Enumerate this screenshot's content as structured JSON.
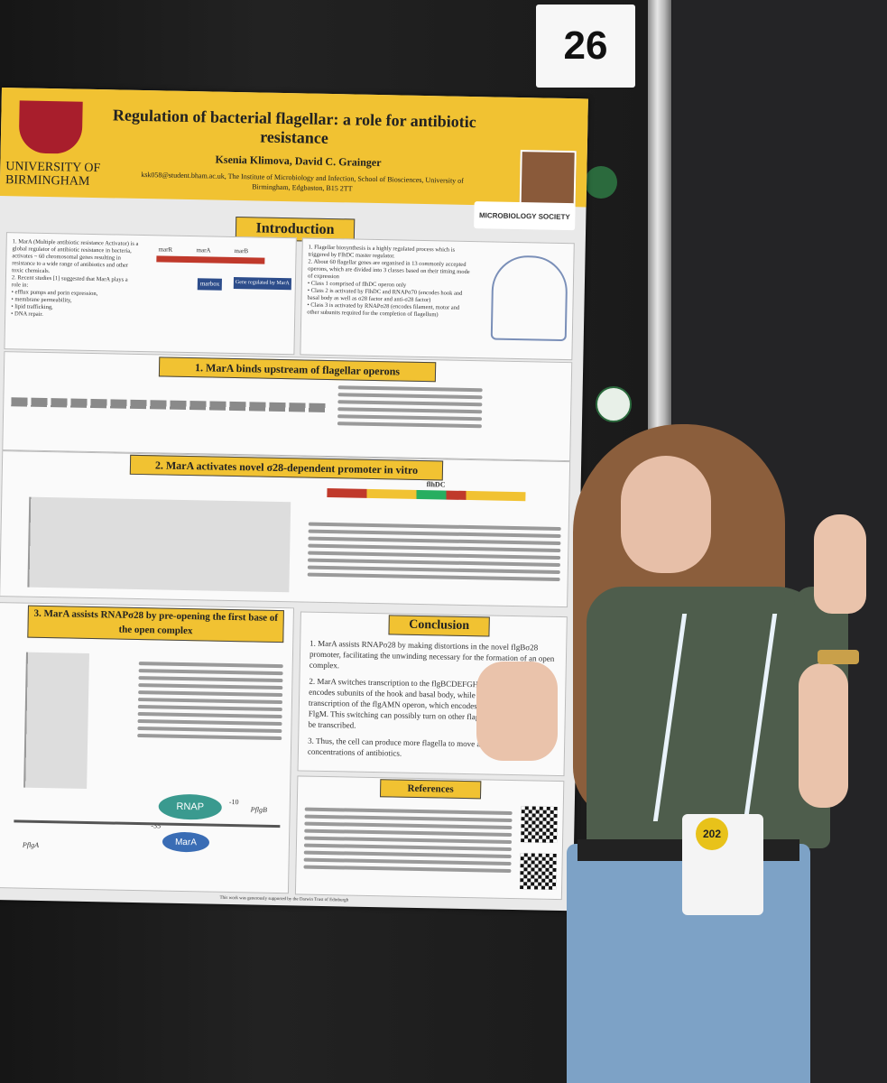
{
  "poster_number": "26",
  "header": {
    "university": "UNIVERSITY OF BIRMINGHAM",
    "title": "Regulation of bacterial flagellar: a role for antibiotic resistance",
    "authors": "Ksenia Klimova, David C. Grainger",
    "affiliation": "ksk058@student.bham.ac.uk, The Institute of Microbiology and Infection, School of Biosciences, University of Birmingham, Edgbaston, B15 2TT",
    "society": "MICROBIOLOGY SOCIETY"
  },
  "sections": {
    "introduction": "Introduction",
    "s1": "1. MarA binds upstream of flagellar operons",
    "s2": "2. MarA activates novel σ28-dependent promoter in vitro",
    "s3": "3. MarA assists RNAPσ28 by pre-opening the first base of the open complex",
    "conclusion": "Conclusion",
    "references": "References"
  },
  "intro_left": [
    "1. MarA (Multiple antibiotic resistance Activator) is a global regulator of antibiotic resistance in bacteria, activates ~ 60 chromosomal genes resulting in resistance to a wide range of antibiotics and other toxic chemicals.",
    "2. Recent studies [1] suggested that MarA plays a role in:",
    "• efflux pumps and porin expression,",
    "• membrane permeability,",
    "• lipid trafficking,",
    "• DNA repair."
  ],
  "intro_right": [
    "1. Flagellar biosynthesis is a highly regulated process which is triggered by FlhDC master regulator.",
    "2. About 60 flagellar genes are organised in 13 commonly accepted operons, which are divided into 3 classes based on their timing mode of expression",
    "• Class 1 comprised of flhDC operon only",
    "• Class 2 is activated by FlhDC and RNAPσ70 (encodes hook and basal body as well as σ28 factor and anti-σ28 factor)",
    "• Class 3 is activated by RNAPσ28 (encodes filament, motor and other subunits required for the completion of flagellum)"
  ],
  "diagram_labels": {
    "marR": "marR",
    "marA": "marA",
    "marB": "marB",
    "marbox": "marbox",
    "gene_regulated": "Gene regulated by MarA",
    "rnap": "RNAP",
    "mara_oval": "MarA",
    "flhdc": "flhDC",
    "flgb": "PflgB",
    "flga": "PflgA",
    "minus10": "-10",
    "minus35": "-35"
  },
  "conclusion": [
    "1. MarA assists RNAPσ28 by making distortions in the novel flgBσ28 promoter, facilitating the unwinding necessary for the formation of an open complex.",
    "2. MarA switches transcription to the flgBCDEFGHIJKL operon, which encodes subunits of the hook and basal body, while it does not promote transcription of the flgAMN operon, which encodes the anti-σ28 factor FlgM. This switching can possibly turn on other flagellar Class 3 operons to be transcribed.",
    "3. Thus, the cell can produce more flagella to move and to escape high concentrations of antibiotics."
  ],
  "footer": "This work was generously supported by the Darwin Trust of Edinburgh",
  "person": {
    "badge_number": "202"
  }
}
